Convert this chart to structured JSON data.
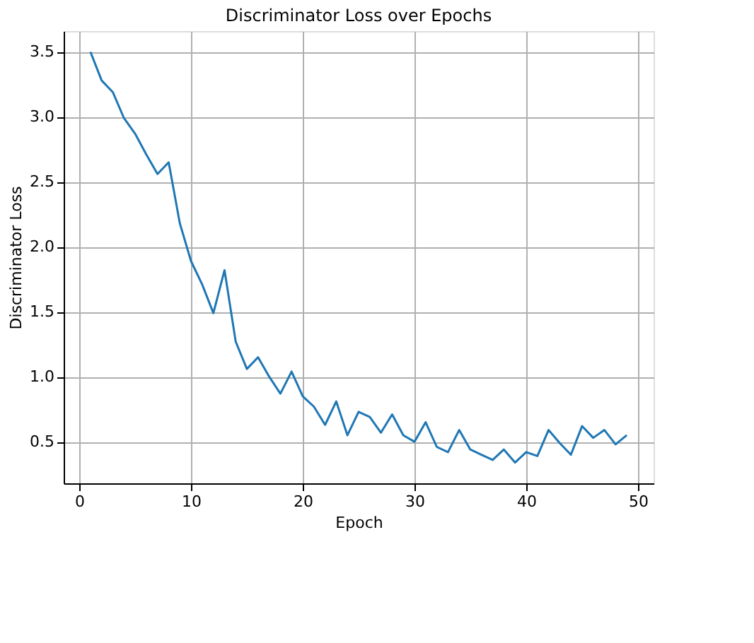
{
  "chart_data": {
    "type": "line",
    "title": "Discriminator Loss over Epochs",
    "xlabel": "Epoch",
    "ylabel": "Discriminator Loss",
    "x": [
      1,
      2,
      3,
      4,
      5,
      6,
      7,
      8,
      9,
      10,
      11,
      12,
      13,
      14,
      15,
      16,
      17,
      18,
      19,
      20,
      21,
      22,
      23,
      24,
      25,
      26,
      27,
      28,
      29,
      30,
      31,
      32,
      33,
      34,
      35,
      36,
      37,
      38,
      39,
      40,
      41,
      42,
      43,
      44,
      45,
      46,
      47,
      48,
      49
    ],
    "series": [
      {
        "color": "#1f77b4",
        "values": [
          3.5,
          3.28,
          3.19,
          2.99,
          2.87,
          2.71,
          2.56,
          2.65,
          2.18,
          1.89,
          1.71,
          1.49,
          1.82,
          1.27,
          1.06,
          1.15,
          1.0,
          0.87,
          1.04,
          0.85,
          0.77,
          0.63,
          0.81,
          0.55,
          0.73,
          0.69,
          0.57,
          0.71,
          0.55,
          0.5,
          0.65,
          0.46,
          0.42,
          0.59,
          0.44,
          0.4,
          0.36,
          0.44,
          0.34,
          0.42,
          0.39,
          0.59,
          0.49,
          0.4,
          0.62,
          0.53,
          0.59,
          0.48,
          0.55
        ]
      }
    ],
    "xlim": [
      -1.4,
      51.4
    ],
    "xticks": [
      0,
      10,
      20,
      30,
      40,
      50
    ],
    "ylim": [
      0.18,
      3.66
    ],
    "yticks": [
      0.5,
      {
        "value": 1,
        "label": "1.0"
      },
      1.5,
      {
        "value": 2,
        "label": "2.0"
      },
      2.5,
      {
        "value": 3,
        "label": "3.0"
      },
      3.5
    ],
    "grid": true,
    "marker": "none",
    "line_style": "solid"
  }
}
